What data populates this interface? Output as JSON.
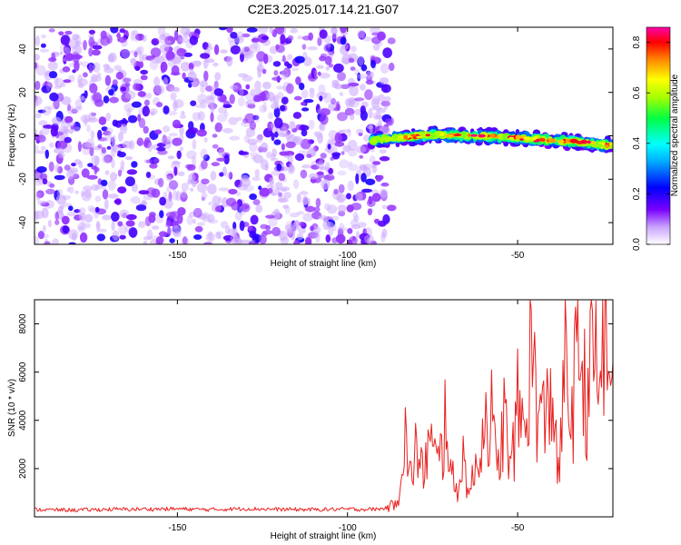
{
  "title": "C2E3.2025.017.14.21.G07",
  "colors": {
    "snr_line": "#e8211f",
    "frame": "#000000",
    "colormap": [
      "#ffffff",
      "#7a00ff",
      "#0000ff",
      "#00ffff",
      "#00ff00",
      "#ffff00",
      "#ff8800",
      "#ff0000",
      "#ff00aa"
    ]
  },
  "chart_data": [
    {
      "type": "heatmap",
      "name": "spectrogram",
      "xlabel": "Height of straight line (km)",
      "ylabel": "Frequency (Hz)",
      "xlim": [
        -192,
        -22
      ],
      "ylim": [
        -50,
        50
      ],
      "x_ticks": [
        -150,
        -100,
        -50
      ],
      "y_ticks": [
        -40,
        -20,
        0,
        20,
        40
      ],
      "grid": false,
      "noise_region": {
        "x": [
          -192,
          -87
        ],
        "y": [
          -50,
          50
        ],
        "typical_amplitude": 0.05
      },
      "signal_ridge": {
        "x": [
          -93,
          -85,
          -75,
          -65,
          -55,
          -45,
          -35,
          -25,
          -22
        ],
        "freq": [
          -2,
          -1,
          0.5,
          0,
          -0.5,
          -1.5,
          -2.5,
          -4,
          -4.5
        ],
        "peak_amplitude": 0.85,
        "half_width_hz": 3
      },
      "colorbar": {
        "label": "Normalized spectral amplitude",
        "range": [
          0.0,
          0.86
        ],
        "ticks": [
          "0.0",
          "0.2",
          "0.4",
          "0.6",
          "0.8"
        ]
      }
    },
    {
      "type": "line",
      "name": "snr",
      "xlabel": "Height of straight line (km)",
      "ylabel": "SNR (10 * v/v)",
      "xlim": [
        -192,
        -22
      ],
      "ylim": [
        0,
        9000
      ],
      "x_ticks": [
        -150,
        -100,
        -50
      ],
      "y_ticks": [
        2000,
        4000,
        6000,
        8000
      ],
      "grid": false,
      "series": [
        {
          "color": "#e8211f",
          "x": [
            -192,
            -180,
            -170,
            -160,
            -150,
            -140,
            -130,
            -120,
            -110,
            -100,
            -95,
            -90,
            -87,
            -85,
            -83,
            -82,
            -80,
            -78,
            -76,
            -74,
            -72,
            -71,
            -70,
            -68,
            -66,
            -64,
            -62,
            -60,
            -58,
            -56,
            -54,
            -52,
            -50,
            -48,
            -46,
            -44,
            -42,
            -40,
            -38,
            -36,
            -34,
            -32,
            -30,
            -28,
            -26,
            -24,
            -23,
            -22
          ],
          "y": [
            300,
            280,
            310,
            320,
            330,
            300,
            340,
            310,
            300,
            320,
            310,
            330,
            450,
            900,
            3500,
            1400,
            2800,
            1800,
            3200,
            2200,
            2600,
            5200,
            1900,
            1100,
            2400,
            1000,
            2200,
            3800,
            4600,
            1600,
            4200,
            1800,
            4500,
            3600,
            7000,
            4400,
            3800,
            5600,
            1600,
            6000,
            4200,
            7400,
            4800,
            6800,
            5500,
            8800,
            4600,
            6400
          ]
        }
      ]
    }
  ]
}
